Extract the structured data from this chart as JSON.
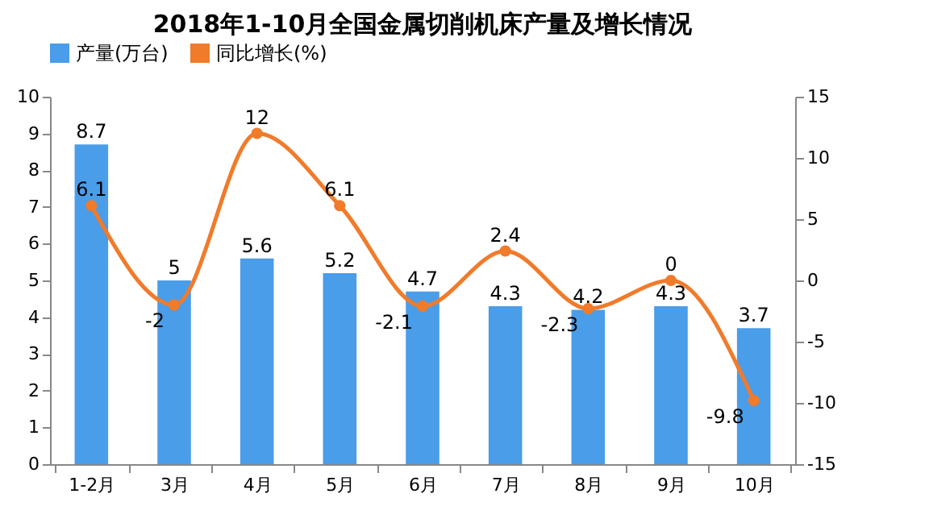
{
  "chart_data": {
    "type": "bar",
    "title": "2018年1-10月全国金属切削机床产量及增长情况",
    "categories": [
      "1-2月",
      "3月",
      "4月",
      "5月",
      "6月",
      "7月",
      "8月",
      "9月",
      "10月"
    ],
    "series": [
      {
        "name": "产量(万台)",
        "color": "#4a9de8",
        "values": [
          8.7,
          5,
          5.6,
          5.2,
          4.7,
          4.3,
          4.2,
          4.3,
          3.7
        ]
      },
      {
        "name": "同比增长(%)",
        "type": "line",
        "axis": "y2",
        "color": "#f07b2b",
        "values": [
          6.1,
          -2,
          12,
          6.1,
          -2.1,
          2.4,
          -2.3,
          0,
          -9.8
        ]
      }
    ],
    "ylim": [
      0,
      10
    ],
    "yticks": [
      0,
      1,
      2,
      3,
      4,
      5,
      6,
      7,
      8,
      9,
      10
    ],
    "y2lim": [
      -15,
      15
    ],
    "y2ticks": [
      -15,
      -10,
      -5,
      0,
      5,
      10,
      15
    ],
    "data_labels": true,
    "grid": false,
    "legend": "top",
    "marker": "circle",
    "line_style": "solid"
  }
}
